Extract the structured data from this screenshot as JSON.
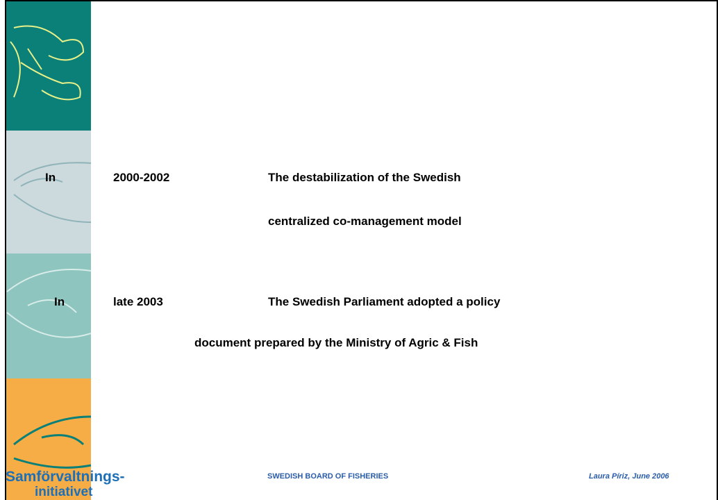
{
  "entries": [
    {
      "prefix": "In",
      "period": "2000-2002",
      "lines": [
        "The destabilization of the Swedish",
        "centralized co-management model"
      ]
    },
    {
      "prefix": "In",
      "period": "late 2003",
      "lines": [
        "The Swedish Parliament adopted a policy",
        "document prepared by the Ministry of Agric & Fish"
      ]
    }
  ],
  "footer": {
    "organization": "SWEDISH BOARD OF FISHERIES",
    "author": "Laura Píriz, June 2006"
  },
  "logo": {
    "line1": "Samförvaltnings-",
    "line2": "initiativet"
  }
}
